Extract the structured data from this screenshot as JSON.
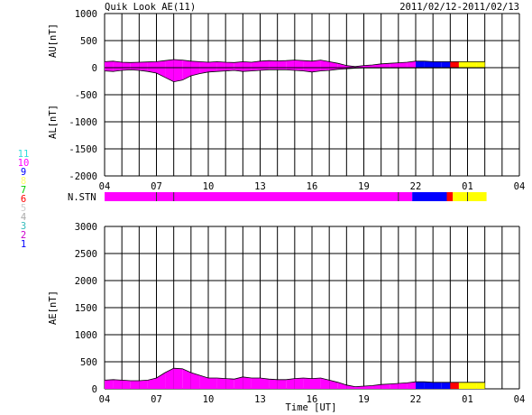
{
  "header": {
    "title": "Quik Look AE(11)",
    "date_range": "2011/02/12-2011/02/13"
  },
  "legend": {
    "items": [
      {
        "label": "11",
        "color": "#33dddd"
      },
      {
        "label": "10",
        "color": "#ff00ff"
      },
      {
        "label": "9",
        "color": "#0000ff"
      },
      {
        "label": "8",
        "color": "#ffff66"
      },
      {
        "label": "7",
        "color": "#00cc00"
      },
      {
        "label": "6",
        "color": "#ff0000"
      },
      {
        "label": "5",
        "color": "#cccccc"
      },
      {
        "label": "4",
        "color": "#aaaaaa"
      },
      {
        "label": "3",
        "color": "#33bbbb"
      },
      {
        "label": "2",
        "color": "#cc00cc"
      },
      {
        "label": "1",
        "color": "#0000ff"
      }
    ]
  },
  "chart_data": [
    {
      "type": "area",
      "panel": "au_al",
      "ylabel_top": "AU[nT]",
      "ylabel_bottom": "AL[nT]",
      "ylim": [
        -2000,
        1000
      ],
      "yticks": [
        "1000",
        "500",
        "0",
        "-500",
        "-1000",
        "-1500",
        "-2000"
      ],
      "xlim_hours": [
        4,
        28
      ],
      "xticks": [
        "04",
        "07",
        "10",
        "13",
        "16",
        "19",
        "22",
        "01",
        "04"
      ],
      "grid": true,
      "x_hours": [
        4,
        4.5,
        5,
        5.5,
        6,
        6.5,
        7,
        7.5,
        8,
        8.5,
        9,
        9.5,
        10,
        10.5,
        11,
        11.5,
        12,
        12.5,
        13,
        13.5,
        14,
        14.5,
        15,
        15.5,
        16,
        16.5,
        17,
        17.5,
        18,
        18.5,
        19,
        19.5,
        20,
        20.5,
        21,
        21.5,
        22,
        22.5,
        23,
        23.5,
        24,
        24.5,
        25,
        25.5,
        26
      ],
      "series": [
        {
          "values": [
            110,
            120,
            100,
            95,
            100,
            105,
            110,
            130,
            150,
            140,
            120,
            110,
            100,
            110,
            100,
            95,
            110,
            100,
            120,
            130,
            125,
            130,
            140,
            130,
            120,
            140,
            110,
            80,
            40,
            20,
            40,
            50,
            70,
            80,
            90,
            100,
            120,
            120,
            110,
            110,
            110,
            110,
            110,
            110,
            110
          ]
        },
        {
          "values": [
            -60,
            -70,
            -50,
            -40,
            -50,
            -70,
            -100,
            -180,
            -260,
            -230,
            -150,
            -110,
            -80,
            -70,
            -60,
            -50,
            -70,
            -60,
            -50,
            -40,
            -40,
            -40,
            -50,
            -60,
            -80,
            -60,
            -50,
            -30,
            -20,
            -10,
            -5,
            -5,
            -5,
            -5,
            -5,
            -5,
            -5,
            -5,
            -5,
            -5,
            -5,
            -5,
            -5,
            -5,
            -5
          ]
        }
      ],
      "station_colors": [
        {
          "from": 4,
          "to": 21.8,
          "color": "#ff00ff"
        },
        {
          "from": 21.8,
          "to": 23.8,
          "color": "#0000ff"
        },
        {
          "from": 23.8,
          "to": 24.15,
          "color": "#ff0000"
        },
        {
          "from": 24.15,
          "to": 26.1,
          "color": "#ffff00"
        }
      ]
    },
    {
      "type": "area",
      "panel": "ae",
      "ylabel": "AE[nT]",
      "xlabel": "Time [UT]",
      "ylim": [
        0,
        3000
      ],
      "yticks": [
        "3000",
        "2500",
        "2000",
        "1500",
        "1000",
        "500",
        "0"
      ],
      "xlim_hours": [
        4,
        28
      ],
      "xticks": [
        "04",
        "07",
        "10",
        "13",
        "16",
        "19",
        "22",
        "01",
        "04"
      ],
      "grid": true,
      "x_hours": [
        4,
        4.5,
        5,
        5.5,
        6,
        6.5,
        7,
        7.5,
        8,
        8.5,
        9,
        9.5,
        10,
        10.5,
        11,
        11.5,
        12,
        12.5,
        13,
        13.5,
        14,
        14.5,
        15,
        15.5,
        16,
        16.5,
        17,
        17.5,
        18,
        18.5,
        19,
        19.5,
        20,
        20.5,
        21,
        21.5,
        22,
        22.5,
        23,
        23.5,
        24,
        24.5,
        25,
        25.5,
        26
      ],
      "series": [
        {
          "values": [
            160,
            170,
            160,
            150,
            150,
            160,
            200,
            300,
            380,
            370,
            300,
            250,
            200,
            200,
            190,
            180,
            220,
            200,
            200,
            180,
            170,
            170,
            190,
            200,
            190,
            200,
            160,
            120,
            70,
            40,
            50,
            60,
            80,
            90,
            100,
            110,
            130,
            130,
            120,
            120,
            120,
            120,
            120,
            120,
            120
          ]
        }
      ],
      "station_colors": [
        {
          "from": 4,
          "to": 21.8,
          "color": "#ff00ff"
        },
        {
          "from": 21.8,
          "to": 23.8,
          "color": "#0000ff"
        },
        {
          "from": 23.8,
          "to": 24.15,
          "color": "#ff0000"
        },
        {
          "from": 24.15,
          "to": 26.1,
          "color": "#ffff00"
        }
      ]
    }
  ],
  "station_bar": {
    "label": "N.STN",
    "segments": [
      {
        "from": 4,
        "to": 21.8,
        "color": "#ff00ff"
      },
      {
        "from": 21.8,
        "to": 23.8,
        "color": "#0000ff"
      },
      {
        "from": 23.8,
        "to": 24.15,
        "color": "#ff0000"
      },
      {
        "from": 24.15,
        "to": 26.1,
        "color": "#ffff00"
      }
    ]
  }
}
